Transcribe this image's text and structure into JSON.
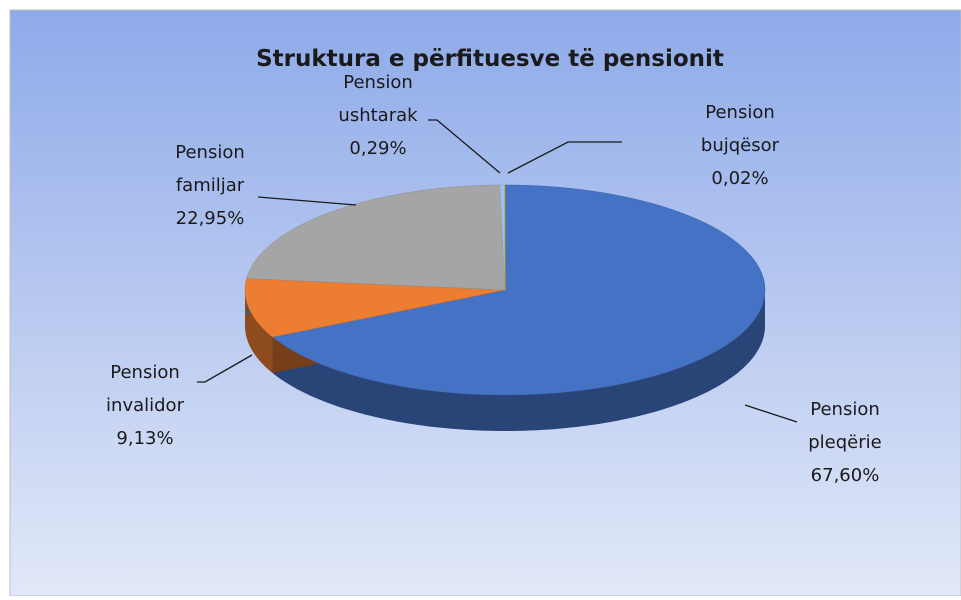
{
  "chart_data": {
    "type": "pie",
    "title": "Struktura e përfituesve të pensionit",
    "categories": [
      "Pension pleqërie",
      "Pension invalidor",
      "Pension familjar",
      "Pension ushtarak",
      "Pension bujqësor"
    ],
    "values": [
      67.6,
      9.13,
      22.95,
      0.29,
      0.02
    ],
    "value_labels": [
      "67,60%",
      "9,13%",
      "22,95%",
      "0,29%",
      "0,02%"
    ],
    "colors": [
      "#4472c4",
      "#ed7d31",
      "#a5a5a5",
      "#9dc3e6",
      "#ffc000"
    ]
  }
}
